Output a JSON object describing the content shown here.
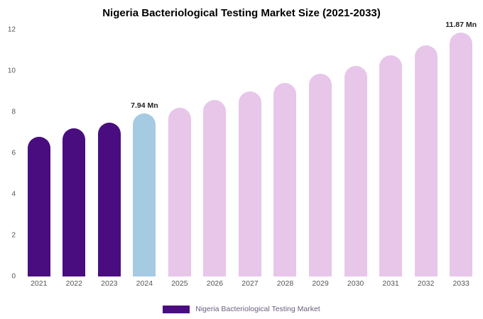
{
  "chart_data": {
    "type": "bar",
    "title": "Nigeria Bacteriological Testing Market Size (2021-2033)",
    "categories": [
      "2021",
      "2022",
      "2023",
      "2024",
      "2025",
      "2026",
      "2027",
      "2028",
      "2029",
      "2030",
      "2031",
      "2032",
      "2033"
    ],
    "values": [
      6.8,
      7.2,
      7.5,
      7.94,
      8.2,
      8.6,
      9.0,
      9.4,
      9.85,
      10.25,
      10.75,
      11.25,
      11.87
    ],
    "unit": "Mn",
    "xlabel": "",
    "ylabel": "",
    "ylim": [
      0,
      12
    ],
    "yticks": [
      0,
      2,
      4,
      6,
      8,
      10,
      12
    ],
    "grid": false,
    "legend_position": "bottom",
    "bar_colors": [
      "#4a0d80",
      "#4a0d80",
      "#4a0d80",
      "#a5cbe3",
      "#e7c6ea",
      "#e7c6ea",
      "#e7c6ea",
      "#e7c6ea",
      "#e7c6ea",
      "#e7c6ea",
      "#e7c6ea",
      "#e7c6ea",
      "#e7c6ea"
    ],
    "annotations": [
      {
        "category": "2024",
        "text": "7.94 Mn"
      },
      {
        "category": "2033",
        "text": "11.87 Mn"
      }
    ],
    "legend": [
      {
        "label": "Nigeria Bacteriological Testing Market",
        "color": "#4a0d80"
      }
    ]
  }
}
